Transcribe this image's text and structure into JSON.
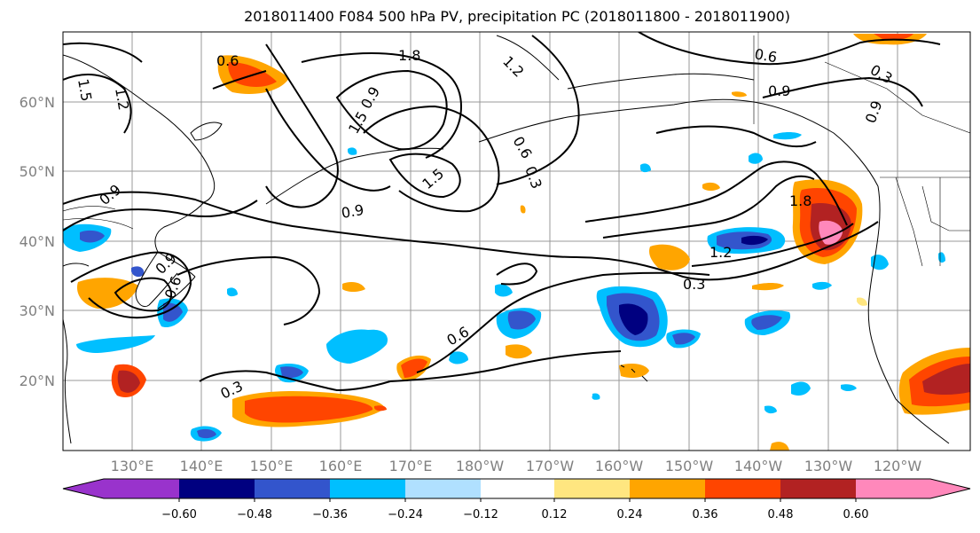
{
  "title": "2018011400 F084 500 hPa PV, precipitation PC (2018011800 - 2018011900)",
  "lat_labels": [
    "60°N",
    "50°N",
    "40°N",
    "30°N",
    "20°N"
  ],
  "lon_labels": [
    "130°E",
    "140°E",
    "150°E",
    "160°E",
    "170°E",
    "180°W",
    "170°W",
    "160°W",
    "150°W",
    "140°W",
    "130°W",
    "120°W"
  ],
  "contour_labels": [
    "0.6",
    "1.8",
    "1.2",
    "1.5",
    "1.2",
    "1.5",
    "1.5",
    "0.9",
    "0.9",
    "0.6",
    "0.3",
    "0.6",
    "0.9",
    "0.9",
    "1.8",
    "1.2",
    "0.3",
    "0.6",
    "0.3",
    "0.9",
    "0.6",
    "0.3",
    "0.9"
  ],
  "colorbar": {
    "tick_labels": [
      "−0.60",
      "−0.48",
      "−0.36",
      "−0.24",
      "−0.12",
      "0.12",
      "0.24",
      "0.36",
      "0.48",
      "0.60"
    ],
    "colors": [
      "#9933cc",
      "#000080",
      "#3355cc",
      "#00bfff",
      "#b0e0ff",
      "#ffffff",
      "#ffe680",
      "#ffa500",
      "#ff4500",
      "#b22222",
      "#ff88bb"
    ]
  }
}
